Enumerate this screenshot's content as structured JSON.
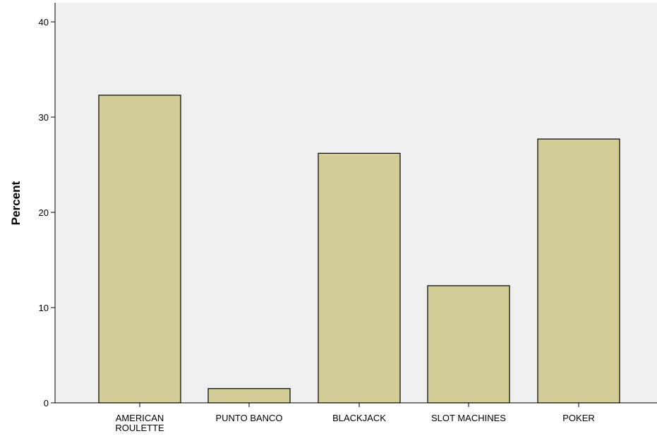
{
  "chart_data": {
    "type": "bar",
    "title": "",
    "xlabel": "",
    "ylabel": "Percent",
    "ylim": [
      0,
      42
    ],
    "yticks": [
      0,
      10,
      20,
      30,
      40
    ],
    "categories": [
      [
        "AMERICAN",
        "ROULETTE"
      ],
      [
        "PUNTO BANCO"
      ],
      [
        "BLACKJACK"
      ],
      [
        "SLOT MACHINES"
      ],
      [
        "POKER"
      ]
    ],
    "values": [
      32.3,
      1.5,
      26.2,
      12.3,
      27.7
    ],
    "grid": false,
    "colors": {
      "bar_fill": "#d3ce97",
      "bar_stroke": "#000000",
      "plot_background": "#f0f0f0"
    }
  }
}
